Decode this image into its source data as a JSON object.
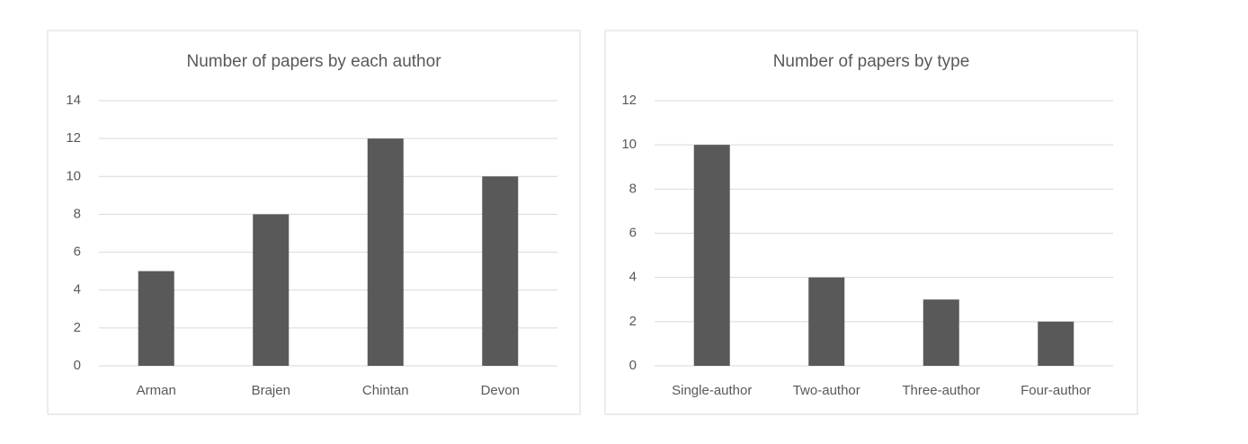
{
  "chart_data": [
    {
      "type": "bar",
      "title": "Number of papers by each author",
      "categories": [
        "Arman",
        "Brajen",
        "Chintan",
        "Devon"
      ],
      "values": [
        5,
        8,
        12,
        10
      ],
      "color": "#595959",
      "ylim": [
        0,
        14
      ],
      "yticks": [
        0,
        2,
        4,
        6,
        8,
        10,
        12,
        14
      ],
      "grid": true
    },
    {
      "type": "bar",
      "title": "Number of papers by type",
      "categories": [
        "Single-author",
        "Two-author",
        "Three-author",
        "Four-author"
      ],
      "values": [
        10,
        4,
        3,
        2
      ],
      "color": "#595959",
      "ylim": [
        0,
        12
      ],
      "yticks": [
        0,
        2,
        4,
        6,
        8,
        10,
        12
      ],
      "grid": true
    }
  ]
}
